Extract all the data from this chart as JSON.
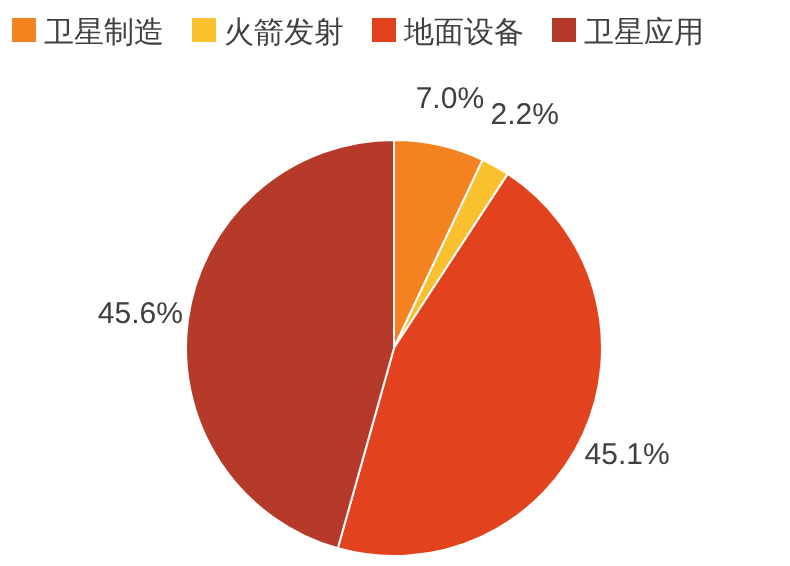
{
  "chart_data": {
    "type": "pie",
    "categories": [
      "卫星制造",
      "火箭发射",
      "地面设备",
      "卫星应用"
    ],
    "values": [
      7.0,
      2.2,
      45.1,
      45.6
    ],
    "colors": [
      "#f58220",
      "#fbc02d",
      "#e2431e",
      "#b53a2a"
    ],
    "value_labels": [
      "7.0%",
      "2.2%",
      "45.1%",
      "45.6%"
    ],
    "legend": "top"
  }
}
